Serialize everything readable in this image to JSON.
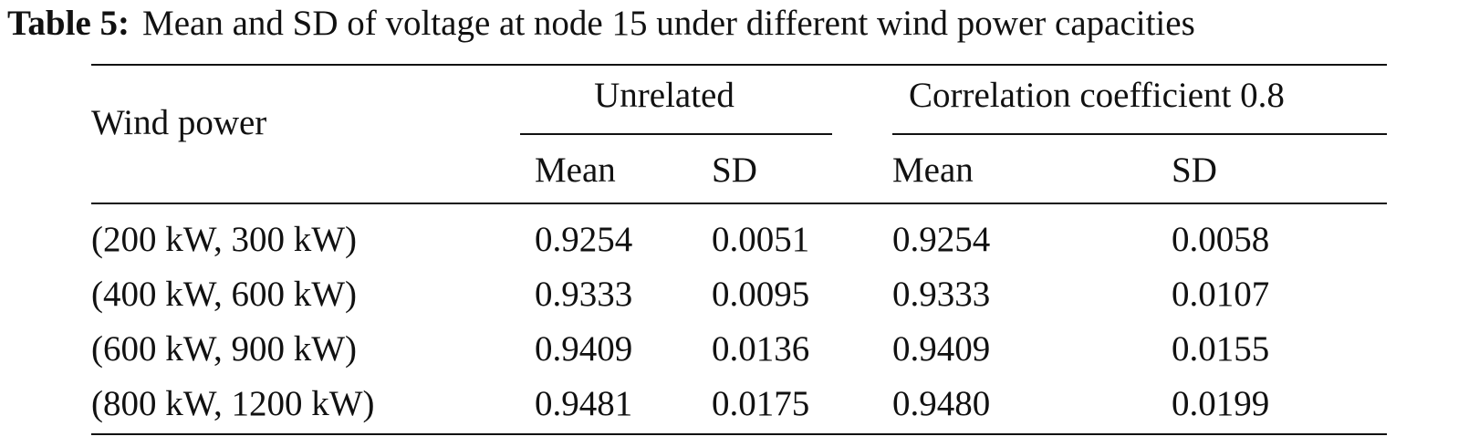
{
  "caption": {
    "label": "Table 5:",
    "text": "Mean and SD of voltage at node 15 under different wind power capacities"
  },
  "header": {
    "wind_power": "Wind power",
    "group_unrelated": "Unrelated",
    "group_corr": "Correlation coefficient 0.8",
    "mean": "Mean",
    "sd": "SD"
  },
  "rows": [
    {
      "wind": "(200 kW, 300 kW)",
      "u_mean": "0.9254",
      "u_sd": "0.0051",
      "c_mean": "0.9254",
      "c_sd": "0.0058"
    },
    {
      "wind": "(400 kW, 600 kW)",
      "u_mean": "0.9333",
      "u_sd": "0.0095",
      "c_mean": "0.9333",
      "c_sd": "0.0107"
    },
    {
      "wind": "(600 kW, 900 kW)",
      "u_mean": "0.9409",
      "u_sd": "0.0136",
      "c_mean": "0.9409",
      "c_sd": "0.0155"
    },
    {
      "wind": "(800 kW, 1200 kW)",
      "u_mean": "0.9481",
      "u_sd": "0.0175",
      "c_mean": "0.9480",
      "c_sd": "0.0199"
    }
  ]
}
